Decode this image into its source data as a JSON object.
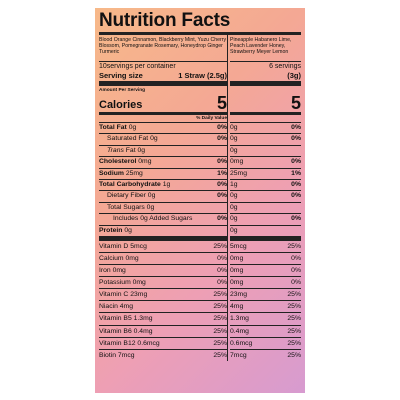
{
  "title": "Nutrition Facts",
  "left": {
    "flavors": "Blood Orange Cinnamon, Blackberry Mint, Yuzu Cherry Blossom, Pomegranate Rosemary, Honeydrop Ginger Turmeric",
    "servings_per_container": "10servings per container",
    "serving_size_label": "Serving size",
    "serving_size_value": "1 Straw (2.5g)",
    "amount_per_serving": "Amount Per Serving",
    "calories_label": "Calories",
    "calories_value": "5",
    "daily_value_header": "% Daily Value",
    "nutrients": [
      {
        "label": "Total Fat",
        "amount": "0g",
        "pct": "0%"
      },
      {
        "label": "Saturated Fat",
        "amount": "0g",
        "pct": "0%"
      },
      {
        "label": "Trans",
        "label2": "Fat",
        "amount": "0g",
        "pct": ""
      },
      {
        "label": "Cholesterol",
        "amount": "0mg",
        "pct": "0%"
      },
      {
        "label": "Sodium",
        "amount": "25mg",
        "pct": "1%"
      },
      {
        "label": "Total Carbohydrate",
        "amount": "1g",
        "pct": "0%"
      },
      {
        "label": "Dietary Fiber",
        "amount": "0g",
        "pct": "0%"
      },
      {
        "label": "Total Sugars",
        "amount": "0g",
        "pct": ""
      },
      {
        "label": "Includes 0g Added Sugars",
        "amount": "",
        "pct": "0%"
      },
      {
        "label": "Protein",
        "amount": "0g",
        "pct": ""
      }
    ],
    "vitamins": [
      {
        "label": "Vitamin D 5mcg",
        "pct": "25%"
      },
      {
        "label": "Calcium 0mg",
        "pct": "0%"
      },
      {
        "label": "Iron 0mg",
        "pct": "0%"
      },
      {
        "label": "Potassium 0mg",
        "pct": "0%"
      },
      {
        "label": "Vitamin C 23mg",
        "pct": "25%"
      },
      {
        "label": "Niacin 4mg",
        "pct": "25%"
      },
      {
        "label": "Vitamin B5 1.3mg",
        "pct": "25%"
      },
      {
        "label": "Vitamin B6 0.4mg",
        "pct": "25%"
      },
      {
        "label": "Vitamin B12 0.6mcg",
        "pct": "25%"
      },
      {
        "label": "Biotin 7mcg",
        "pct": "25%"
      }
    ]
  },
  "right": {
    "flavors": "Pineapple Habanero Lime, Peach Lavender Honey, Strawberry Meyer Lemon",
    "servings_per_container": "6 servings",
    "serving_size_value": "(3g)",
    "calories_value": "5",
    "nutrients": [
      {
        "amount": "0g",
        "pct": "0%"
      },
      {
        "amount": "0g",
        "pct": "0%"
      },
      {
        "amount": "0g",
        "pct": ""
      },
      {
        "amount": "0mg",
        "pct": "0%"
      },
      {
        "amount": "25mg",
        "pct": "1%"
      },
      {
        "amount": "1g",
        "pct": "0%"
      },
      {
        "amount": "0g",
        "pct": "0%"
      },
      {
        "amount": "0g",
        "pct": ""
      },
      {
        "amount": "0g",
        "pct": "0%"
      },
      {
        "amount": "0g",
        "pct": ""
      }
    ],
    "vitamins": [
      {
        "amount": "5mcg",
        "pct": "25%"
      },
      {
        "amount": "0mg",
        "pct": "0%"
      },
      {
        "amount": "0mg",
        "pct": "0%"
      },
      {
        "amount": "0mg",
        "pct": "0%"
      },
      {
        "amount": "23mg",
        "pct": "25%"
      },
      {
        "amount": "4mg",
        "pct": "25%"
      },
      {
        "amount": "1.3mg",
        "pct": "25%"
      },
      {
        "amount": "0.4mg",
        "pct": "25%"
      },
      {
        "amount": "0.6mcg",
        "pct": "25%"
      },
      {
        "amount": "7mcg",
        "pct": "25%"
      }
    ]
  }
}
